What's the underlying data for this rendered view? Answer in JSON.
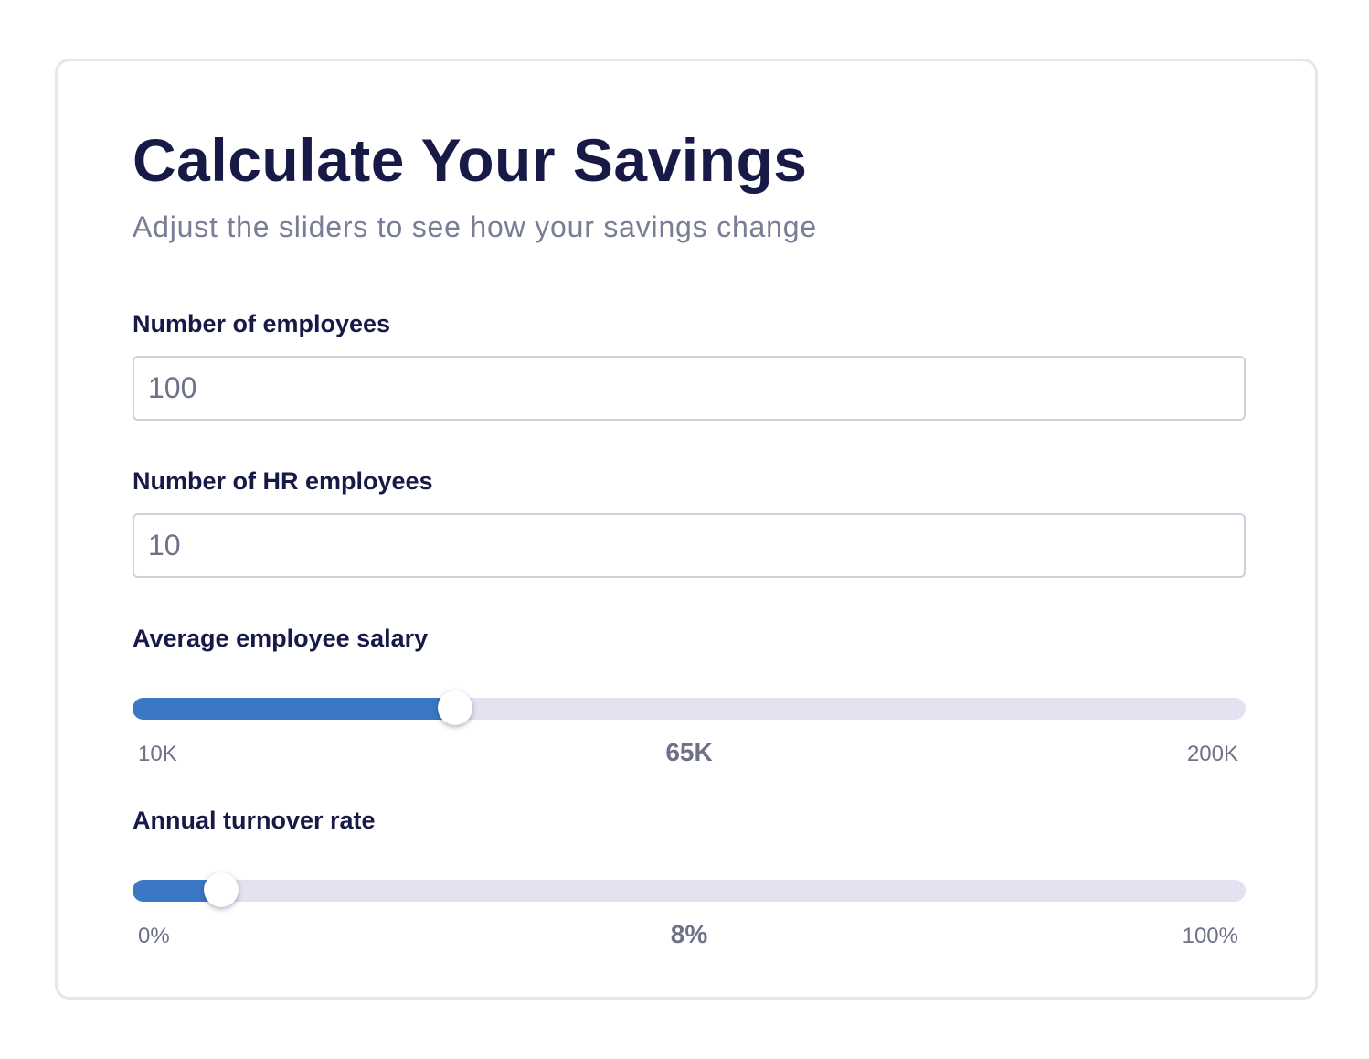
{
  "card": {
    "title": "Calculate Your Savings",
    "subtitle": "Adjust the sliders to see how your savings change"
  },
  "fields": {
    "employees": {
      "label": "Number of employees",
      "value": "100"
    },
    "hr_employees": {
      "label": "Number of HR employees",
      "value": "10"
    },
    "salary": {
      "label": "Average employee salary",
      "min_label": "10K",
      "max_label": "200K",
      "value_label": "65K",
      "min": 10,
      "max": 200,
      "value": 65
    },
    "turnover": {
      "label": "Annual turnover rate",
      "min_label": "0%",
      "max_label": "100%",
      "value_label": "8%",
      "min": 0,
      "max": 100,
      "value": 8
    }
  },
  "colors": {
    "accent": "#3a77c4",
    "track": "#e3e2f0",
    "heading": "#171a46",
    "muted": "#7a7d98"
  }
}
